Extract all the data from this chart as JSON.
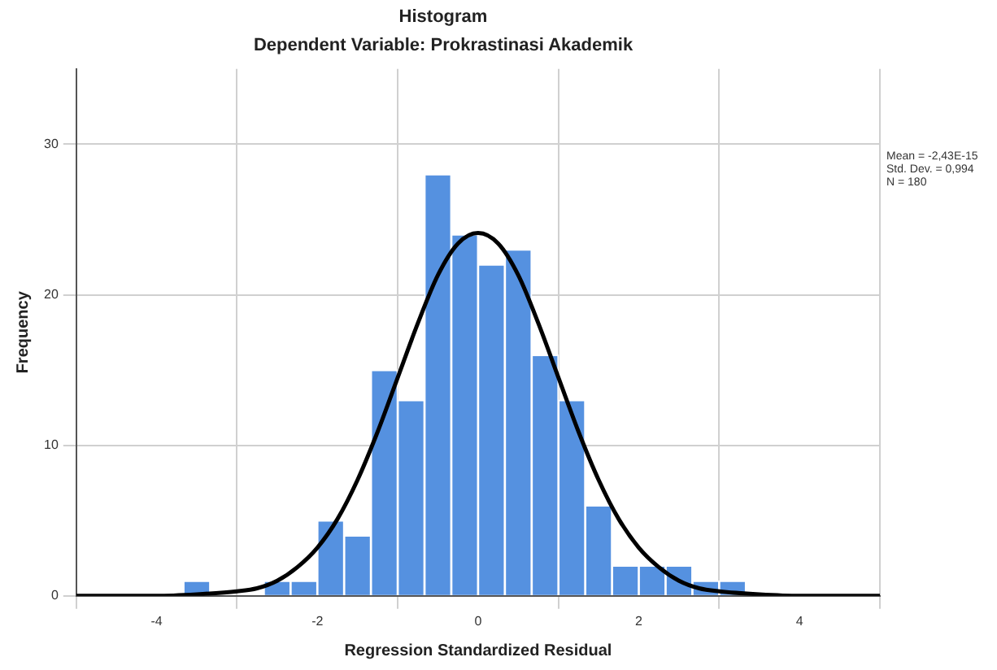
{
  "chart_data": {
    "type": "histogram",
    "title": "Histogram",
    "subtitle": "Dependent Variable: Prokrastinasi Akademik",
    "xlabel": "Regression Standardized Residual",
    "ylabel": "Frequency",
    "series": [
      {
        "color": "#5591e0",
        "bins": [
          -3.667,
          -3.333,
          -3,
          -2.667,
          -2.333,
          -2,
          -1.667,
          -1.333,
          -1,
          -0.667,
          -0.333,
          0,
          0.333,
          0.667,
          1,
          1.333,
          1.667,
          2,
          2.333,
          2.667,
          3,
          3.333
        ],
        "values": [
          1,
          0,
          0,
          1,
          1,
          5,
          4,
          15,
          13,
          28,
          24,
          22,
          23,
          16,
          13,
          6,
          2,
          2,
          2,
          1,
          1
        ]
      },
      {
        "type": "line",
        "color": "#000000",
        "x": [
          -5,
          -4,
          -3.5,
          -3,
          -2.75,
          -2.5,
          -2.25,
          -2,
          -1.75,
          -1.5,
          -1.25,
          -1,
          -0.75,
          -0.5,
          -0.25,
          0,
          0.25,
          0.5,
          0.75,
          1,
          1.25,
          1.5,
          1.75,
          2,
          2.25,
          2.5,
          2.75,
          3,
          3.5,
          4,
          5
        ],
        "values": [
          0,
          0,
          0.1,
          0.3,
          0.5,
          1,
          1.9,
          3.2,
          5.1,
          7.7,
          10.9,
          14.5,
          18.1,
          21.3,
          23.4,
          24.1,
          23.4,
          21.3,
          18.1,
          14.5,
          10.9,
          7.7,
          5.1,
          3.2,
          1.9,
          1,
          0.5,
          0.3,
          0.1,
          0,
          0
        ]
      }
    ],
    "xlim": [
      -5,
      5
    ],
    "xticks": [
      -4,
      -2,
      0,
      2,
      4
    ],
    "ylim": [
      0,
      35
    ],
    "yticks": [
      0,
      10,
      20,
      30
    ],
    "grid": true,
    "marker": "none",
    "line_style": "solid",
    "annotations": [
      "Mean = -2,43E-15",
      "Std. Dev. = 0,994",
      "N = 180"
    ]
  }
}
